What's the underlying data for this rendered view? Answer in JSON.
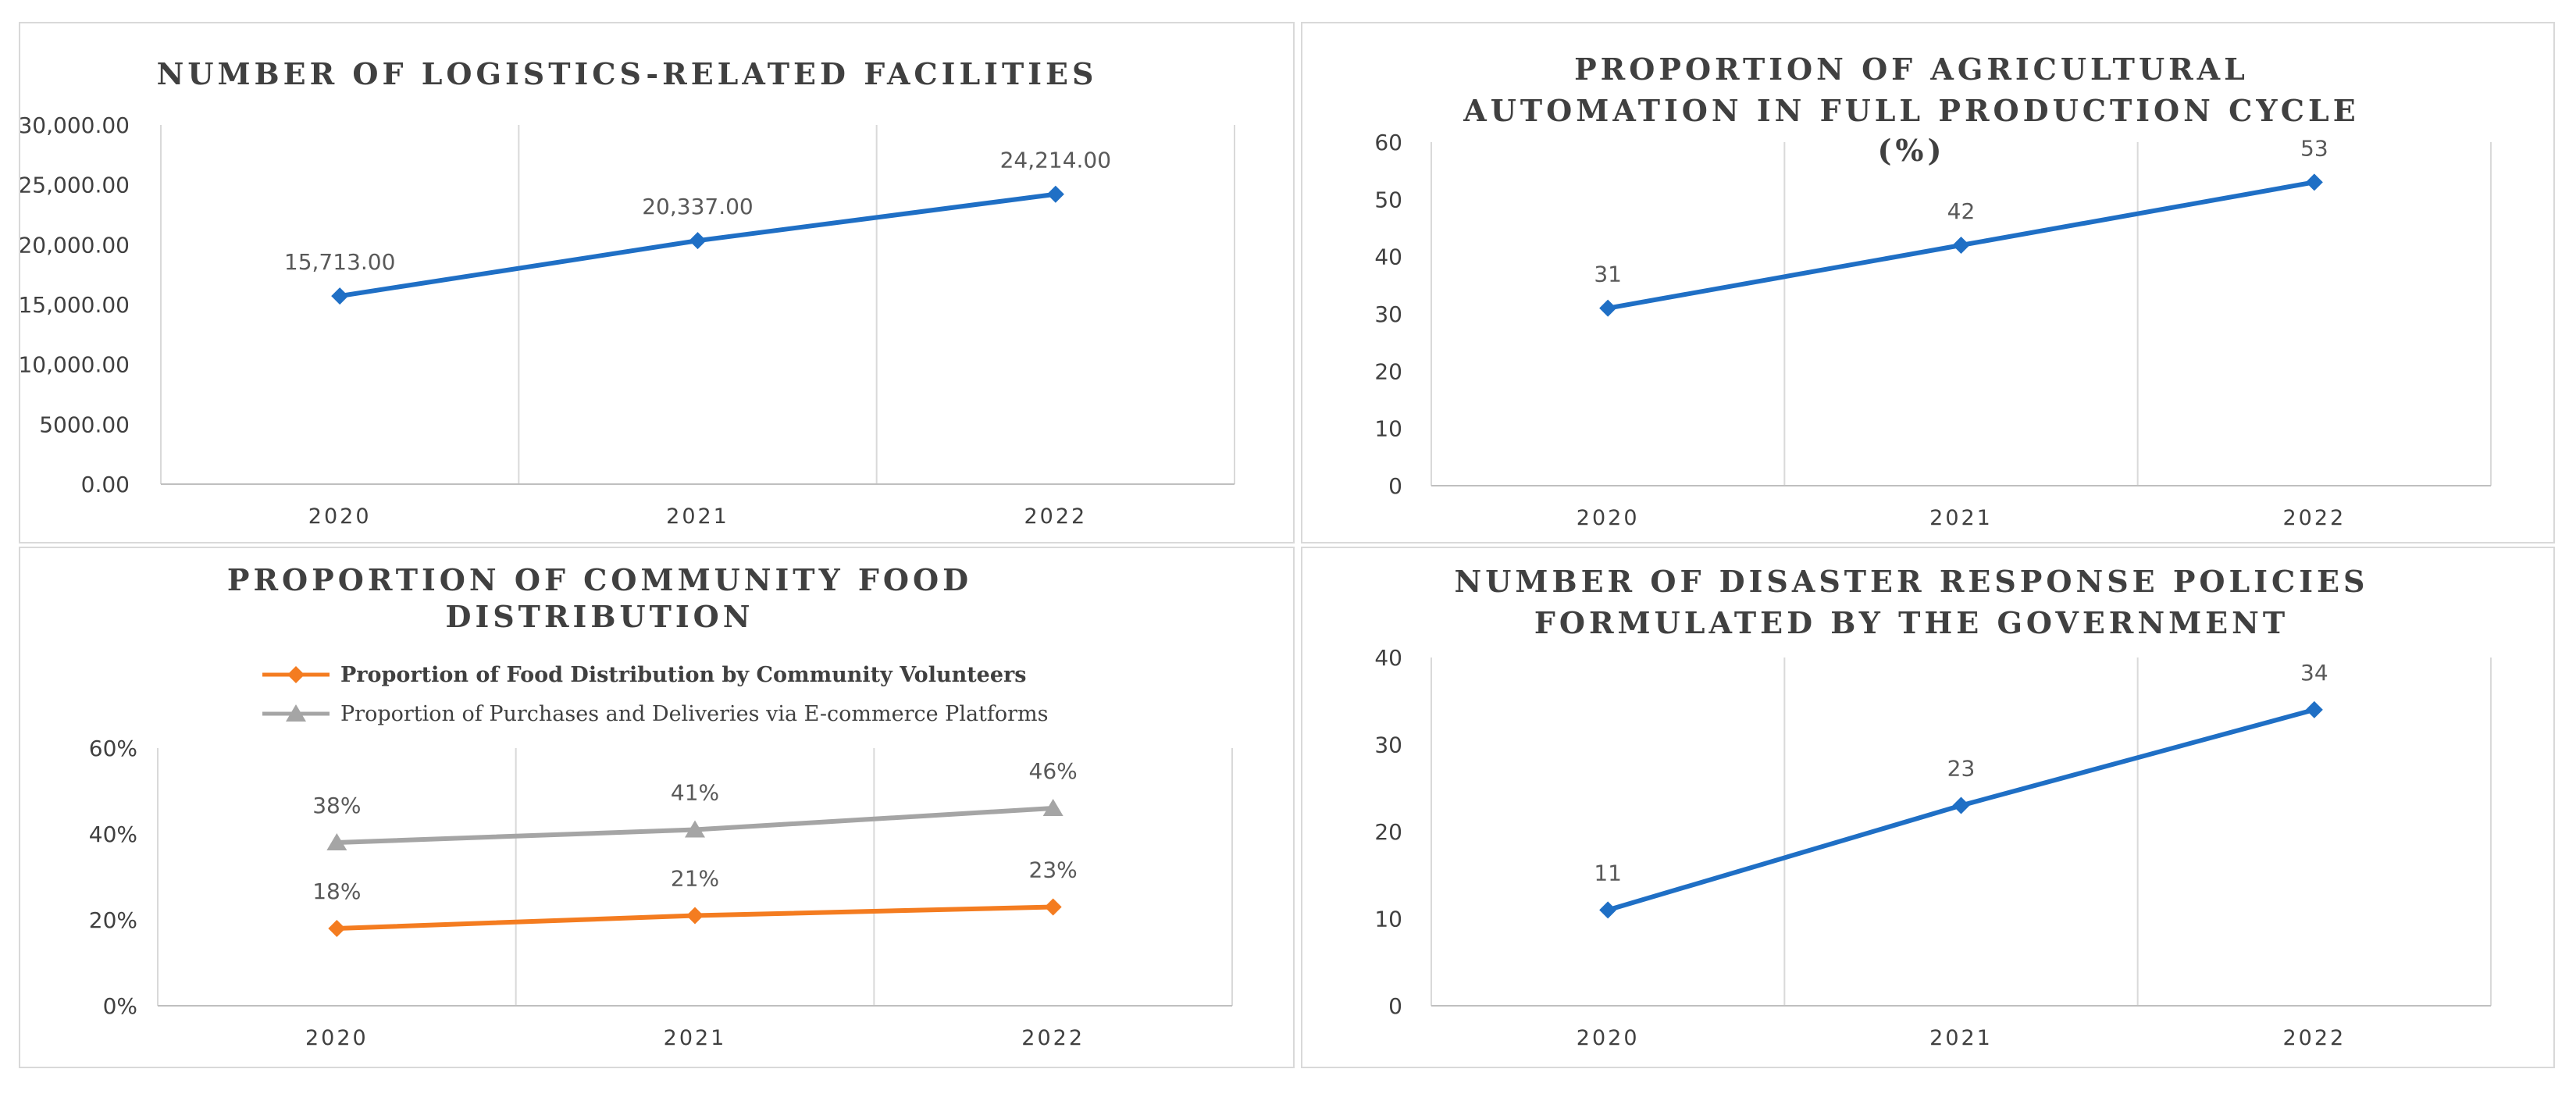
{
  "chart_data": [
    {
      "type": "line",
      "title": "NUMBER OF LOGISTICS-RELATED FACILITIES",
      "title_lines": [
        "NUMBER OF LOGISTICS-RELATED FACILITIES"
      ],
      "categories": [
        "2020",
        "2021",
        "2022"
      ],
      "ylim": [
        0,
        30000
      ],
      "yticks": [
        "0.00",
        "5000.00",
        "10,000.00",
        "15,000.00",
        "20,000.00",
        "25,000.00",
        "30,000.00"
      ],
      "series": [
        {
          "name": "Number of logistics-related facilities",
          "color": "#1f6fc5",
          "marker": "diamond",
          "values": [
            15713,
            20337,
            24214
          ],
          "labels": [
            "15,713.00",
            "20,337.00",
            "24,214.00"
          ]
        }
      ],
      "legend": null
    },
    {
      "type": "line",
      "title": "PROPORTION OF AGRICULTURAL AUTOMATION IN FULL PRODUCTION CYCLE (%)",
      "title_lines": [
        "PROPORTION OF AGRICULTURAL",
        "AUTOMATION IN FULL PRODUCTION CYCLE",
        "(%)"
      ],
      "categories": [
        "2020",
        "2021",
        "2022"
      ],
      "ylim": [
        0,
        60
      ],
      "yticks": [
        "0",
        "10",
        "20",
        "30",
        "40",
        "50",
        "60"
      ],
      "series": [
        {
          "name": "Proportion of agricultural automation",
          "color": "#1f6fc5",
          "marker": "diamond",
          "values": [
            31,
            42,
            53
          ],
          "labels": [
            "31",
            "42",
            "53"
          ]
        }
      ],
      "legend": null
    },
    {
      "type": "line",
      "title": "PROPORTION OF COMMUNITY FOOD DISTRIBUTION",
      "title_lines": [
        "PROPORTION OF COMMUNITY FOOD",
        "DISTRIBUTION"
      ],
      "categories": [
        "2020",
        "2021",
        "2022"
      ],
      "ylim": [
        0,
        0.6
      ],
      "yticks": [
        "0%",
        "20%",
        "40%",
        "60%"
      ],
      "series": [
        {
          "name": "Proportion of Food Distribution by Community Volunteers",
          "color": "#f47c20",
          "marker": "diamond",
          "values": [
            0.18,
            0.21,
            0.23
          ],
          "labels": [
            "18%",
            "21%",
            "23%"
          ]
        },
        {
          "name": "Proportion of Purchases and Deliveries via E-commerce Platforms",
          "color": "#a5a5a5",
          "marker": "triangle",
          "values": [
            0.38,
            0.41,
            0.46
          ],
          "labels": [
            "38%",
            "41%",
            "46%"
          ]
        }
      ],
      "legend": "top"
    },
    {
      "type": "line",
      "title": "NUMBER OF DISASTER RESPONSE POLICIES FORMULATED BY THE GOVERNMENT",
      "title_lines": [
        "NUMBER OF DISASTER RESPONSE POLICIES",
        "FORMULATED BY THE GOVERNMENT"
      ],
      "categories": [
        "2020",
        "2021",
        "2022"
      ],
      "ylim": [
        0,
        40
      ],
      "yticks": [
        "0",
        "10",
        "20",
        "30",
        "40"
      ],
      "series": [
        {
          "name": "Number of disaster response policies",
          "color": "#1f6fc5",
          "marker": "diamond",
          "values": [
            11,
            23,
            34
          ],
          "labels": [
            "11",
            "23",
            "34"
          ]
        }
      ],
      "legend": null
    }
  ]
}
